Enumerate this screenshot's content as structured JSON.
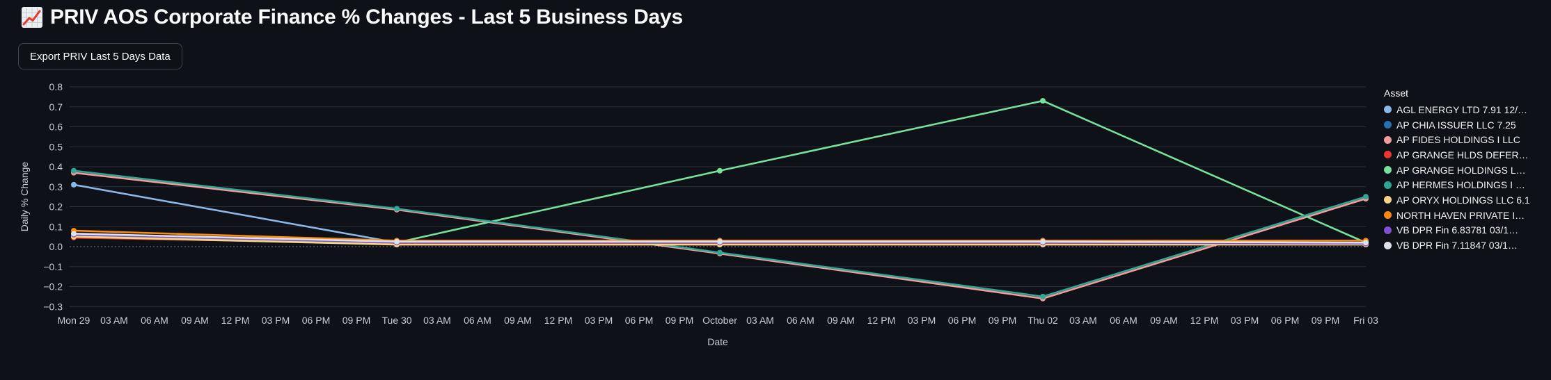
{
  "header": {
    "title": "PRIV AOS Corporate Finance % Changes - Last 5 Business Days",
    "icon": "chart-increasing"
  },
  "toolbar": {
    "export_label": "Export PRIV Last 5 Days Data"
  },
  "theme": {
    "background": "#0e1117",
    "title_text": "#fafafa",
    "tick_text": "#c9ced6",
    "grid_line": "#2a2f3b",
    "zero_line": "#8a8f99",
    "button_border": "rgba(250,250,250,0.22)",
    "emoji_line": "#e5392e"
  },
  "chart_data": {
    "type": "line",
    "title": "",
    "xlabel": "Date",
    "ylabel": "Daily % Change",
    "ylim": [
      -0.3,
      0.8
    ],
    "grid": true,
    "legend_position": "right",
    "legend_title": "Asset",
    "y_ticks": [
      "0.8",
      "0.7",
      "0.6",
      "0.5",
      "0.4",
      "0.3",
      "0.2",
      "0.1",
      "0.0",
      "−0.1",
      "−0.2",
      "−0.3"
    ],
    "x_ticks": [
      "Mon 29",
      "03 AM",
      "06 AM",
      "09 AM",
      "12 PM",
      "03 PM",
      "06 PM",
      "09 PM",
      "Tue 30",
      "03 AM",
      "06 AM",
      "09 AM",
      "12 PM",
      "03 PM",
      "06 PM",
      "09 PM",
      "October",
      "03 AM",
      "06 AM",
      "09 AM",
      "12 PM",
      "03 PM",
      "06 PM",
      "09 PM",
      "Thu 02",
      "03 AM",
      "06 AM",
      "09 AM",
      "12 PM",
      "03 PM",
      "06 PM",
      "09 PM",
      "Fri 03"
    ],
    "day_point_tick_indices": [
      0,
      8,
      16,
      24,
      32
    ],
    "x_days": [
      "Mon 29",
      "Tue 30",
      "October",
      "Thu 02",
      "Fri 03"
    ],
    "series": [
      {
        "name": "AGL ENERGY LTD 7.91 12/…",
        "color": "#8ab8e8",
        "values": [
          0.31,
          0.02,
          0.02,
          0.02,
          0.02
        ]
      },
      {
        "name": "AP CHIA ISSUER LLC 7.25",
        "color": "#2272b5",
        "values": [
          0.055,
          0.02,
          0.02,
          0.02,
          0.02
        ]
      },
      {
        "name": "AP FIDES HOLDINGS I LLC",
        "color": "#f79c9c",
        "values": [
          0.37,
          0.185,
          -0.035,
          -0.26,
          0.24
        ]
      },
      {
        "name": "AP GRANGE HLDS DEFER…",
        "color": "#ee352e",
        "values": [
          0.045,
          0.015,
          0.015,
          0.015,
          0.015
        ]
      },
      {
        "name": "AP GRANGE HOLDINGS L…",
        "color": "#77e09a",
        "values": [
          0.05,
          0.02,
          0.38,
          0.73,
          0.02
        ]
      },
      {
        "name": "AP HERMES HOLDINGS I …",
        "color": "#2ea795",
        "values": [
          0.38,
          0.19,
          -0.03,
          -0.25,
          0.25
        ]
      },
      {
        "name": "AP ORYX HOLDINGS LLC 6.1",
        "color": "#f8d483",
        "values": [
          0.05,
          0.01,
          0.01,
          0.01,
          0.01
        ]
      },
      {
        "name": "NORTH HAVEN PRIVATE I…",
        "color": "#fb8b10",
        "values": [
          0.08,
          0.03,
          0.03,
          0.03,
          0.03
        ]
      },
      {
        "name": "VB DPR Fin 6.83781 03/1…",
        "color": "#8050d0",
        "values": [
          0.06,
          0.02,
          0.02,
          0.02,
          0.015
        ]
      },
      {
        "name": "VB DPR Fin 7.11847 03/1…",
        "color": "#dde2e9",
        "values": [
          0.065,
          0.025,
          0.025,
          0.025,
          0.02
        ]
      }
    ]
  }
}
